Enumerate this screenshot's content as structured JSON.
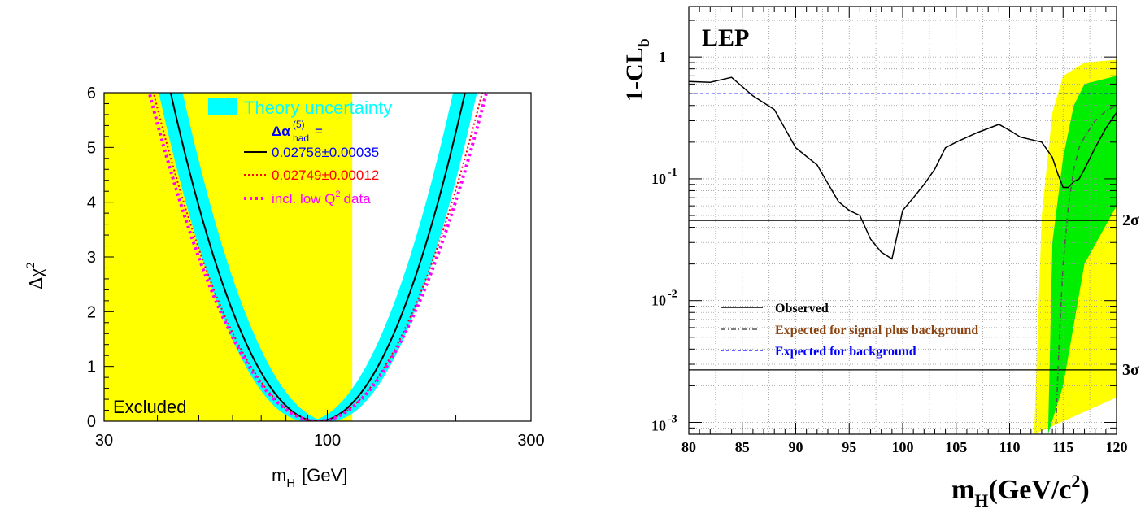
{
  "chart_data": [
    {
      "type": "line",
      "x_scale": "log",
      "xlabel": "m",
      "xlabel_sub": "H",
      "xlabel_unit": "[GeV]",
      "ylabel": "Δχ",
      "ylabel_sup": "2",
      "xlim": [
        30,
        300
      ],
      "ylim": [
        0,
        6
      ],
      "x_ticks": [
        {
          "v": 30,
          "label": "30"
        },
        {
          "v": 100,
          "label": "100"
        },
        {
          "v": 300,
          "label": "300"
        }
      ],
      "y_ticks": [
        "0",
        "1",
        "2",
        "3",
        "4",
        "5",
        "6"
      ],
      "excluded_region": {
        "from": 30,
        "to": 114.4,
        "label": "Excluded",
        "color": "#ffff00"
      },
      "theory_band": {
        "label": "Theory uncertainty",
        "color": "#00ffff",
        "min_x": 95,
        "a": 5.05,
        "w": 0.2,
        "half_width": 0.028
      },
      "delta_alpha_label": {
        "main": "Δα",
        "sub": "had",
        "sup": "(5)",
        "eq": "="
      },
      "series": [
        {
          "name": "0.02758±0.00035",
          "color": "#000000",
          "style": "solid",
          "min_x": 95,
          "a": 5.05
        },
        {
          "name": "0.02749±0.00012",
          "color": "#ff0000",
          "style": "dotted",
          "min_x": 95,
          "a": 4.05
        },
        {
          "name": "incl. low Q",
          "name_sup": "2",
          "name_suffix": "data",
          "color": "#ff00ff",
          "style": "heavy-dotted",
          "min_x": 95,
          "a": 3.85
        }
      ],
      "legend_text_colors": [
        "#0000ff",
        "#ff0000",
        "#ff00ff"
      ]
    },
    {
      "type": "line",
      "y_scale": "log",
      "title": "LEP",
      "ylabel": "1-CL",
      "ylabel_sub": "b",
      "xlabel": "m",
      "xlabel_sub": "H",
      "xlabel_unit_pre": "(GeV/c",
      "xlabel_unit_sup": "2",
      "xlabel_unit_post": ")",
      "xlim": [
        80,
        120
      ],
      "ylim": [
        0.0008,
        2.6
      ],
      "x_ticks": [
        "80",
        "85",
        "90",
        "95",
        "100",
        "105",
        "110",
        "115",
        "120"
      ],
      "y_major": [
        {
          "v": 1,
          "base": "1",
          "exp": ""
        },
        {
          "v": 0.1,
          "base": "10",
          "exp": "-1"
        },
        {
          "v": 0.01,
          "base": "10",
          "exp": "-2"
        },
        {
          "v": 0.001,
          "base": "10",
          "exp": "-3"
        }
      ],
      "sigma_lines": [
        {
          "label": "2σ",
          "value": 0.0455
        },
        {
          "label": "3σ",
          "value": 0.0027
        }
      ],
      "background_expectation": 0.5,
      "bands": {
        "yellow": {
          "color": "#ffff00",
          "lower": [
            [
              112.3,
              0.0008
            ],
            [
              120,
              0.0016
            ]
          ],
          "upper": [
            [
              112.3,
              0.0008
            ],
            [
              113.0,
              0.05
            ],
            [
              114.0,
              0.35
            ],
            [
              115.0,
              0.7
            ],
            [
              117.0,
              0.9
            ],
            [
              120,
              0.95
            ]
          ]
        },
        "green": {
          "color": "#00ee00",
          "lower": [
            [
              113.6,
              0.0008
            ],
            [
              115.0,
              0.002
            ],
            [
              117.0,
              0.02
            ],
            [
              120,
              0.06
            ]
          ],
          "upper": [
            [
              113.6,
              0.0008
            ],
            [
              114.0,
              0.03
            ],
            [
              115.0,
              0.15
            ],
            [
              116.0,
              0.4
            ],
            [
              117.0,
              0.6
            ],
            [
              120,
              0.7
            ]
          ]
        }
      },
      "legend": [
        {
          "label": "Observed",
          "color": "#000000",
          "style": "solid"
        },
        {
          "label": "Expected for signal plus background",
          "color": "#8b4513",
          "style": "dashdot"
        },
        {
          "label": "Expected for background",
          "color": "#0000ff",
          "style": "dashed"
        }
      ],
      "series": [
        {
          "name": "Observed",
          "color": "#000000",
          "x": [
            80,
            82,
            84,
            86,
            88,
            90,
            92,
            94,
            95,
            96,
            97,
            98,
            99,
            100,
            101,
            102,
            103,
            104,
            105,
            107,
            109,
            110,
            111,
            112,
            113,
            114,
            114.5,
            115,
            115.5,
            116,
            116.5,
            117,
            118,
            119,
            120
          ],
          "y": [
            0.63,
            0.62,
            0.68,
            0.48,
            0.37,
            0.18,
            0.13,
            0.065,
            0.055,
            0.05,
            0.032,
            0.025,
            0.022,
            0.055,
            0.07,
            0.09,
            0.12,
            0.18,
            0.2,
            0.24,
            0.28,
            0.25,
            0.22,
            0.21,
            0.2,
            0.15,
            0.11,
            0.085,
            0.085,
            0.095,
            0.1,
            0.12,
            0.18,
            0.26,
            0.35
          ]
        },
        {
          "name": "Expected for signal plus background",
          "color": "#555555",
          "x": [
            114.3,
            114.6,
            115,
            115.5,
            116,
            116.5,
            117,
            118,
            119,
            120
          ],
          "y": [
            0.0008,
            0.004,
            0.02,
            0.06,
            0.12,
            0.18,
            0.22,
            0.3,
            0.36,
            0.4
          ]
        }
      ]
    }
  ]
}
